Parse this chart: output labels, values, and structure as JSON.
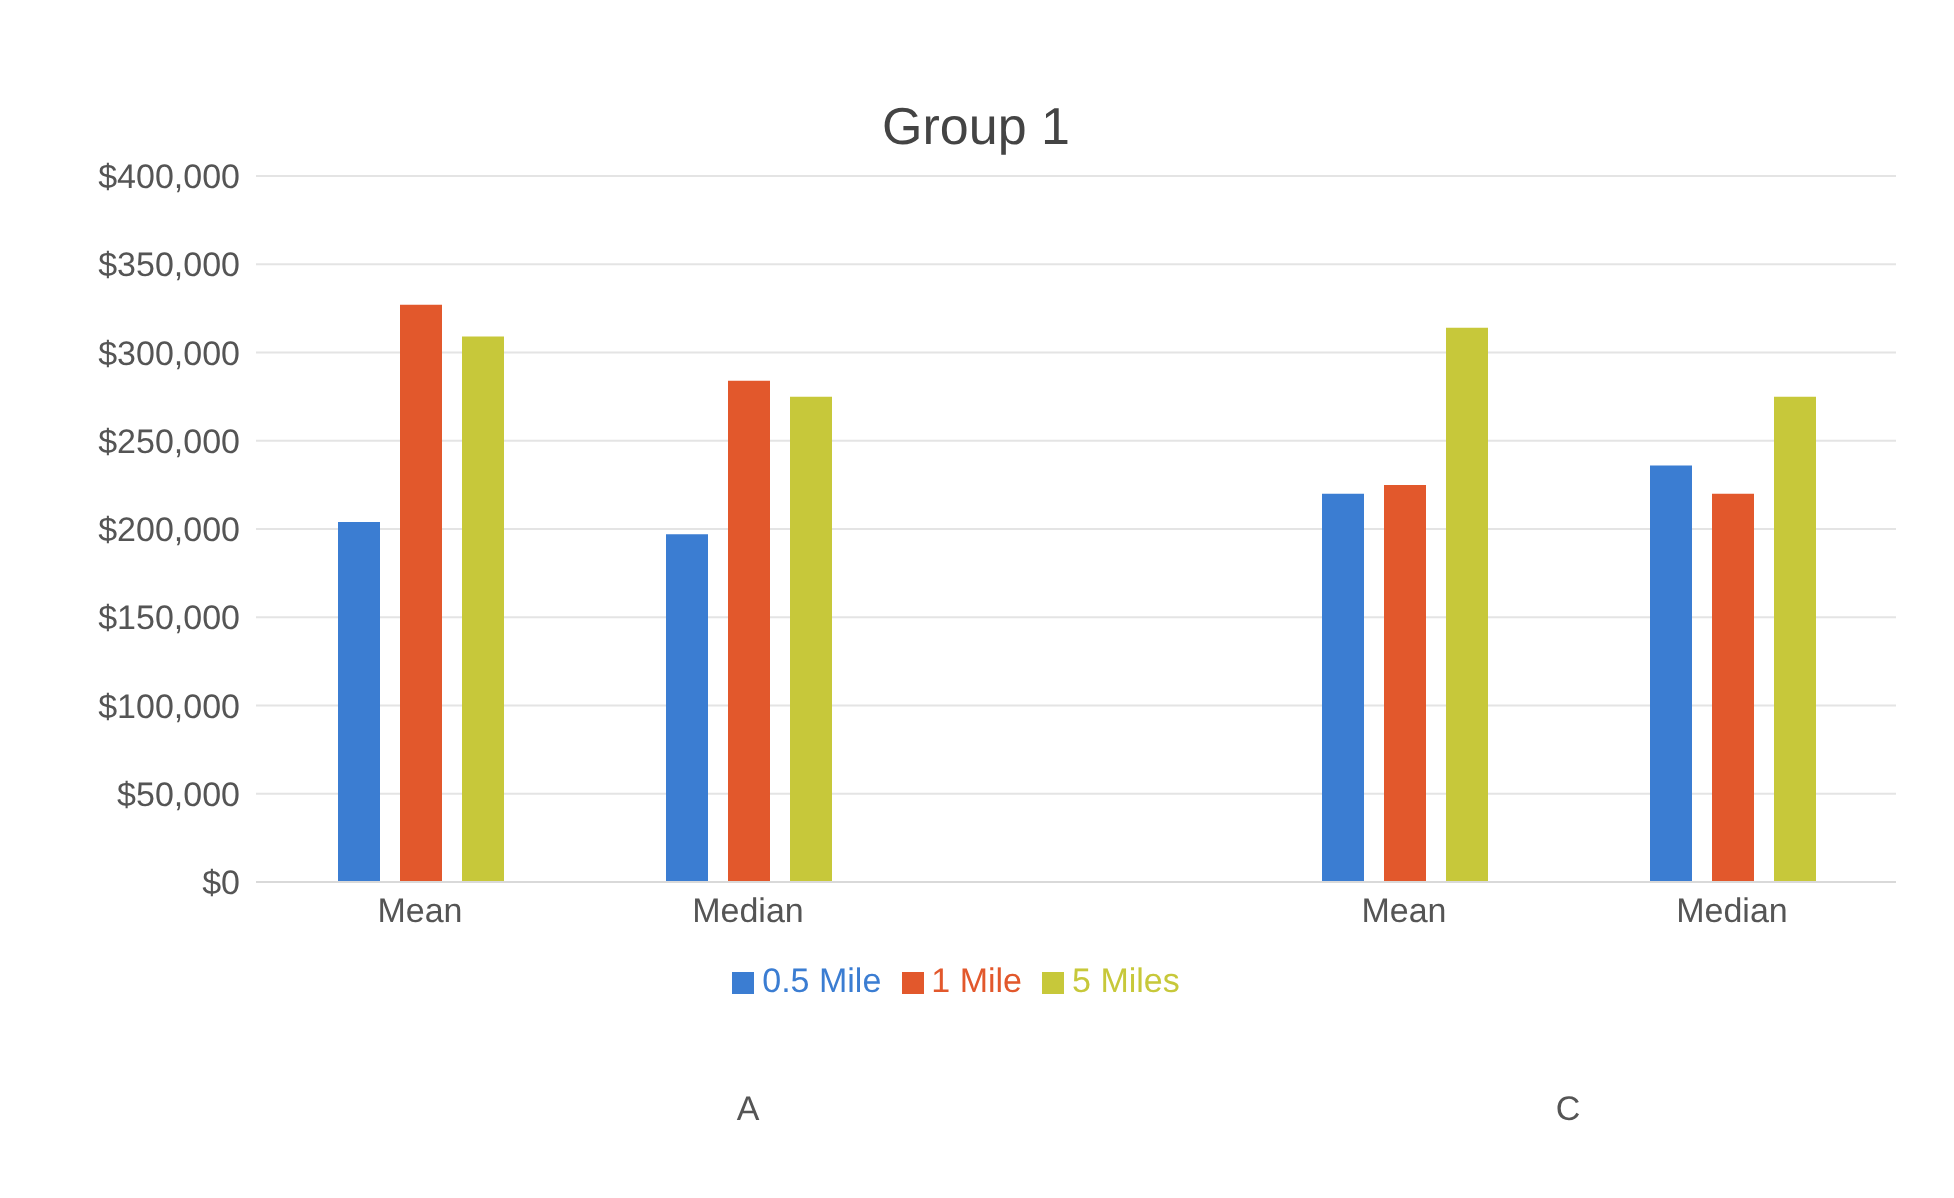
{
  "chart_data": {
    "type": "bar",
    "title": "Group 1",
    "categories": [
      "Mean",
      "Median",
      null,
      "Mean",
      "Median"
    ],
    "series": [
      {
        "name": "0.5 Mile",
        "color": "#3b7dd2",
        "values": [
          204000,
          197000,
          null,
          220000,
          236000
        ]
      },
      {
        "name": "1 Mile",
        "color": "#e2582c",
        "values": [
          327000,
          284000,
          null,
          225000,
          220000
        ]
      },
      {
        "name": "5 Miles",
        "color": "#c7c83a",
        "values": [
          309000,
          275000,
          null,
          314000,
          275000
        ]
      }
    ],
    "annotations": [
      "A",
      "C"
    ],
    "ylim": [
      0,
      400000
    ],
    "yticks": [
      {
        "value": 0,
        "label": "$0"
      },
      {
        "value": 50000,
        "label": "$50,000"
      },
      {
        "value": 100000,
        "label": "$100,000"
      },
      {
        "value": 150000,
        "label": "$150,000"
      },
      {
        "value": 200000,
        "label": "$200,000"
      },
      {
        "value": 250000,
        "label": "$250,000"
      },
      {
        "value": 300000,
        "label": "$300,000"
      },
      {
        "value": 350000,
        "label": "$350,000"
      },
      {
        "value": 400000,
        "label": "$400,000"
      }
    ],
    "grid": "y",
    "legend": "bottom"
  }
}
